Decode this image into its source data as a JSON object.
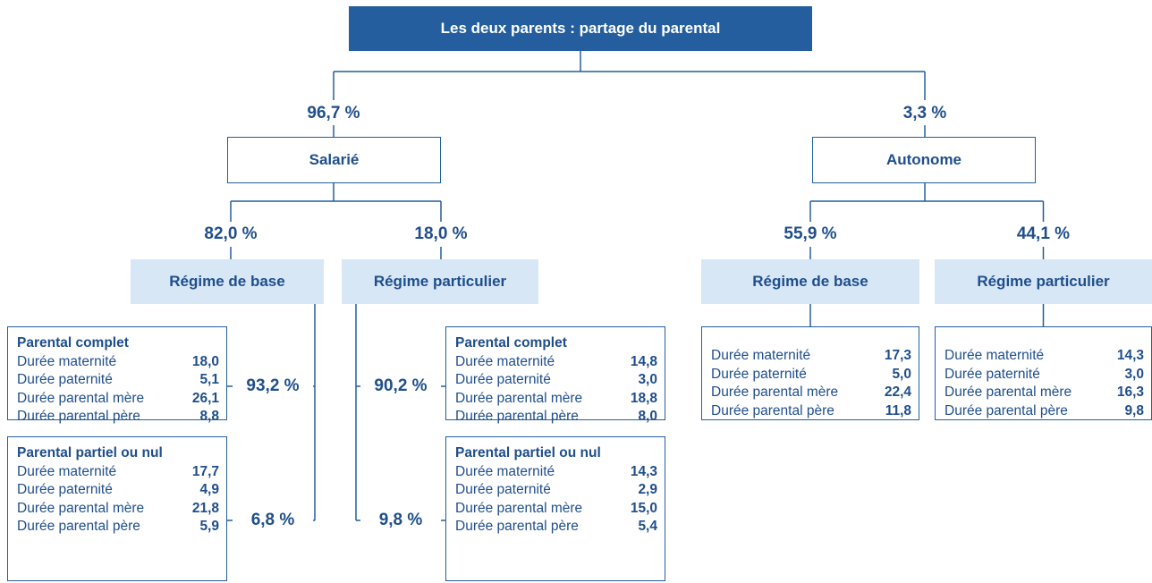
{
  "root": {
    "title": "Les deux parents : partage du parental"
  },
  "branches": [
    {
      "share": "96,7 %",
      "label": "Salarié",
      "subbranches": [
        {
          "share": "82,0 %",
          "label": "Régime de base",
          "details": [
            {
              "share": "93,2 %",
              "title": "Parental complet",
              "rows": [
                [
                  "Durée maternité",
                  "18,0"
                ],
                [
                  "Durée paternité",
                  "5,1"
                ],
                [
                  "Durée parental mère",
                  "26,1"
                ],
                [
                  "Durée parental père",
                  "8,8"
                ]
              ]
            },
            {
              "share": "6,8 %",
              "title": "Parental partiel ou nul",
              "rows": [
                [
                  "Durée maternité",
                  "17,7"
                ],
                [
                  "Durée paternité",
                  "4,9"
                ],
                [
                  "Durée parental mère",
                  "21,8"
                ],
                [
                  "Durée parental père",
                  "5,9"
                ]
              ]
            }
          ]
        },
        {
          "share": "18,0 %",
          "label": "Régime particulier",
          "details": [
            {
              "share": "90,2 %",
              "title": "Parental complet",
              "rows": [
                [
                  "Durée maternité",
                  "14,8"
                ],
                [
                  "Durée paternité",
                  "3,0"
                ],
                [
                  "Durée parental mère",
                  "18,8"
                ],
                [
                  "Durée parental père",
                  "8,0"
                ]
              ]
            },
            {
              "share": "9,8 %",
              "title": "Parental partiel ou nul",
              "rows": [
                [
                  "Durée maternité",
                  "14,3"
                ],
                [
                  "Durée paternité",
                  "2,9"
                ],
                [
                  "Durée parental mère",
                  "15,0"
                ],
                [
                  "Durée parental père",
                  "5,4"
                ]
              ]
            }
          ]
        }
      ]
    },
    {
      "share": "3,3 %",
      "label": "Autonome",
      "subbranches": [
        {
          "share": "55,9 %",
          "label": "Régime de base",
          "details": [
            {
              "rows": [
                [
                  "Durée maternité",
                  "17,3"
                ],
                [
                  "Durée paternité",
                  "5,0"
                ],
                [
                  "Durée parental mère",
                  "22,4"
                ],
                [
                  "Durée parental père",
                  "11,8"
                ]
              ]
            }
          ]
        },
        {
          "share": "44,1 %",
          "label": "Régime particulier",
          "details": [
            {
              "rows": [
                [
                  "Durée maternité",
                  "14,3"
                ],
                [
                  "Durée paternité",
                  "3,0"
                ],
                [
                  "Durée parental mère",
                  "16,3"
                ],
                [
                  "Durée parental père",
                  "9,8"
                ]
              ]
            }
          ]
        }
      ]
    }
  ]
}
